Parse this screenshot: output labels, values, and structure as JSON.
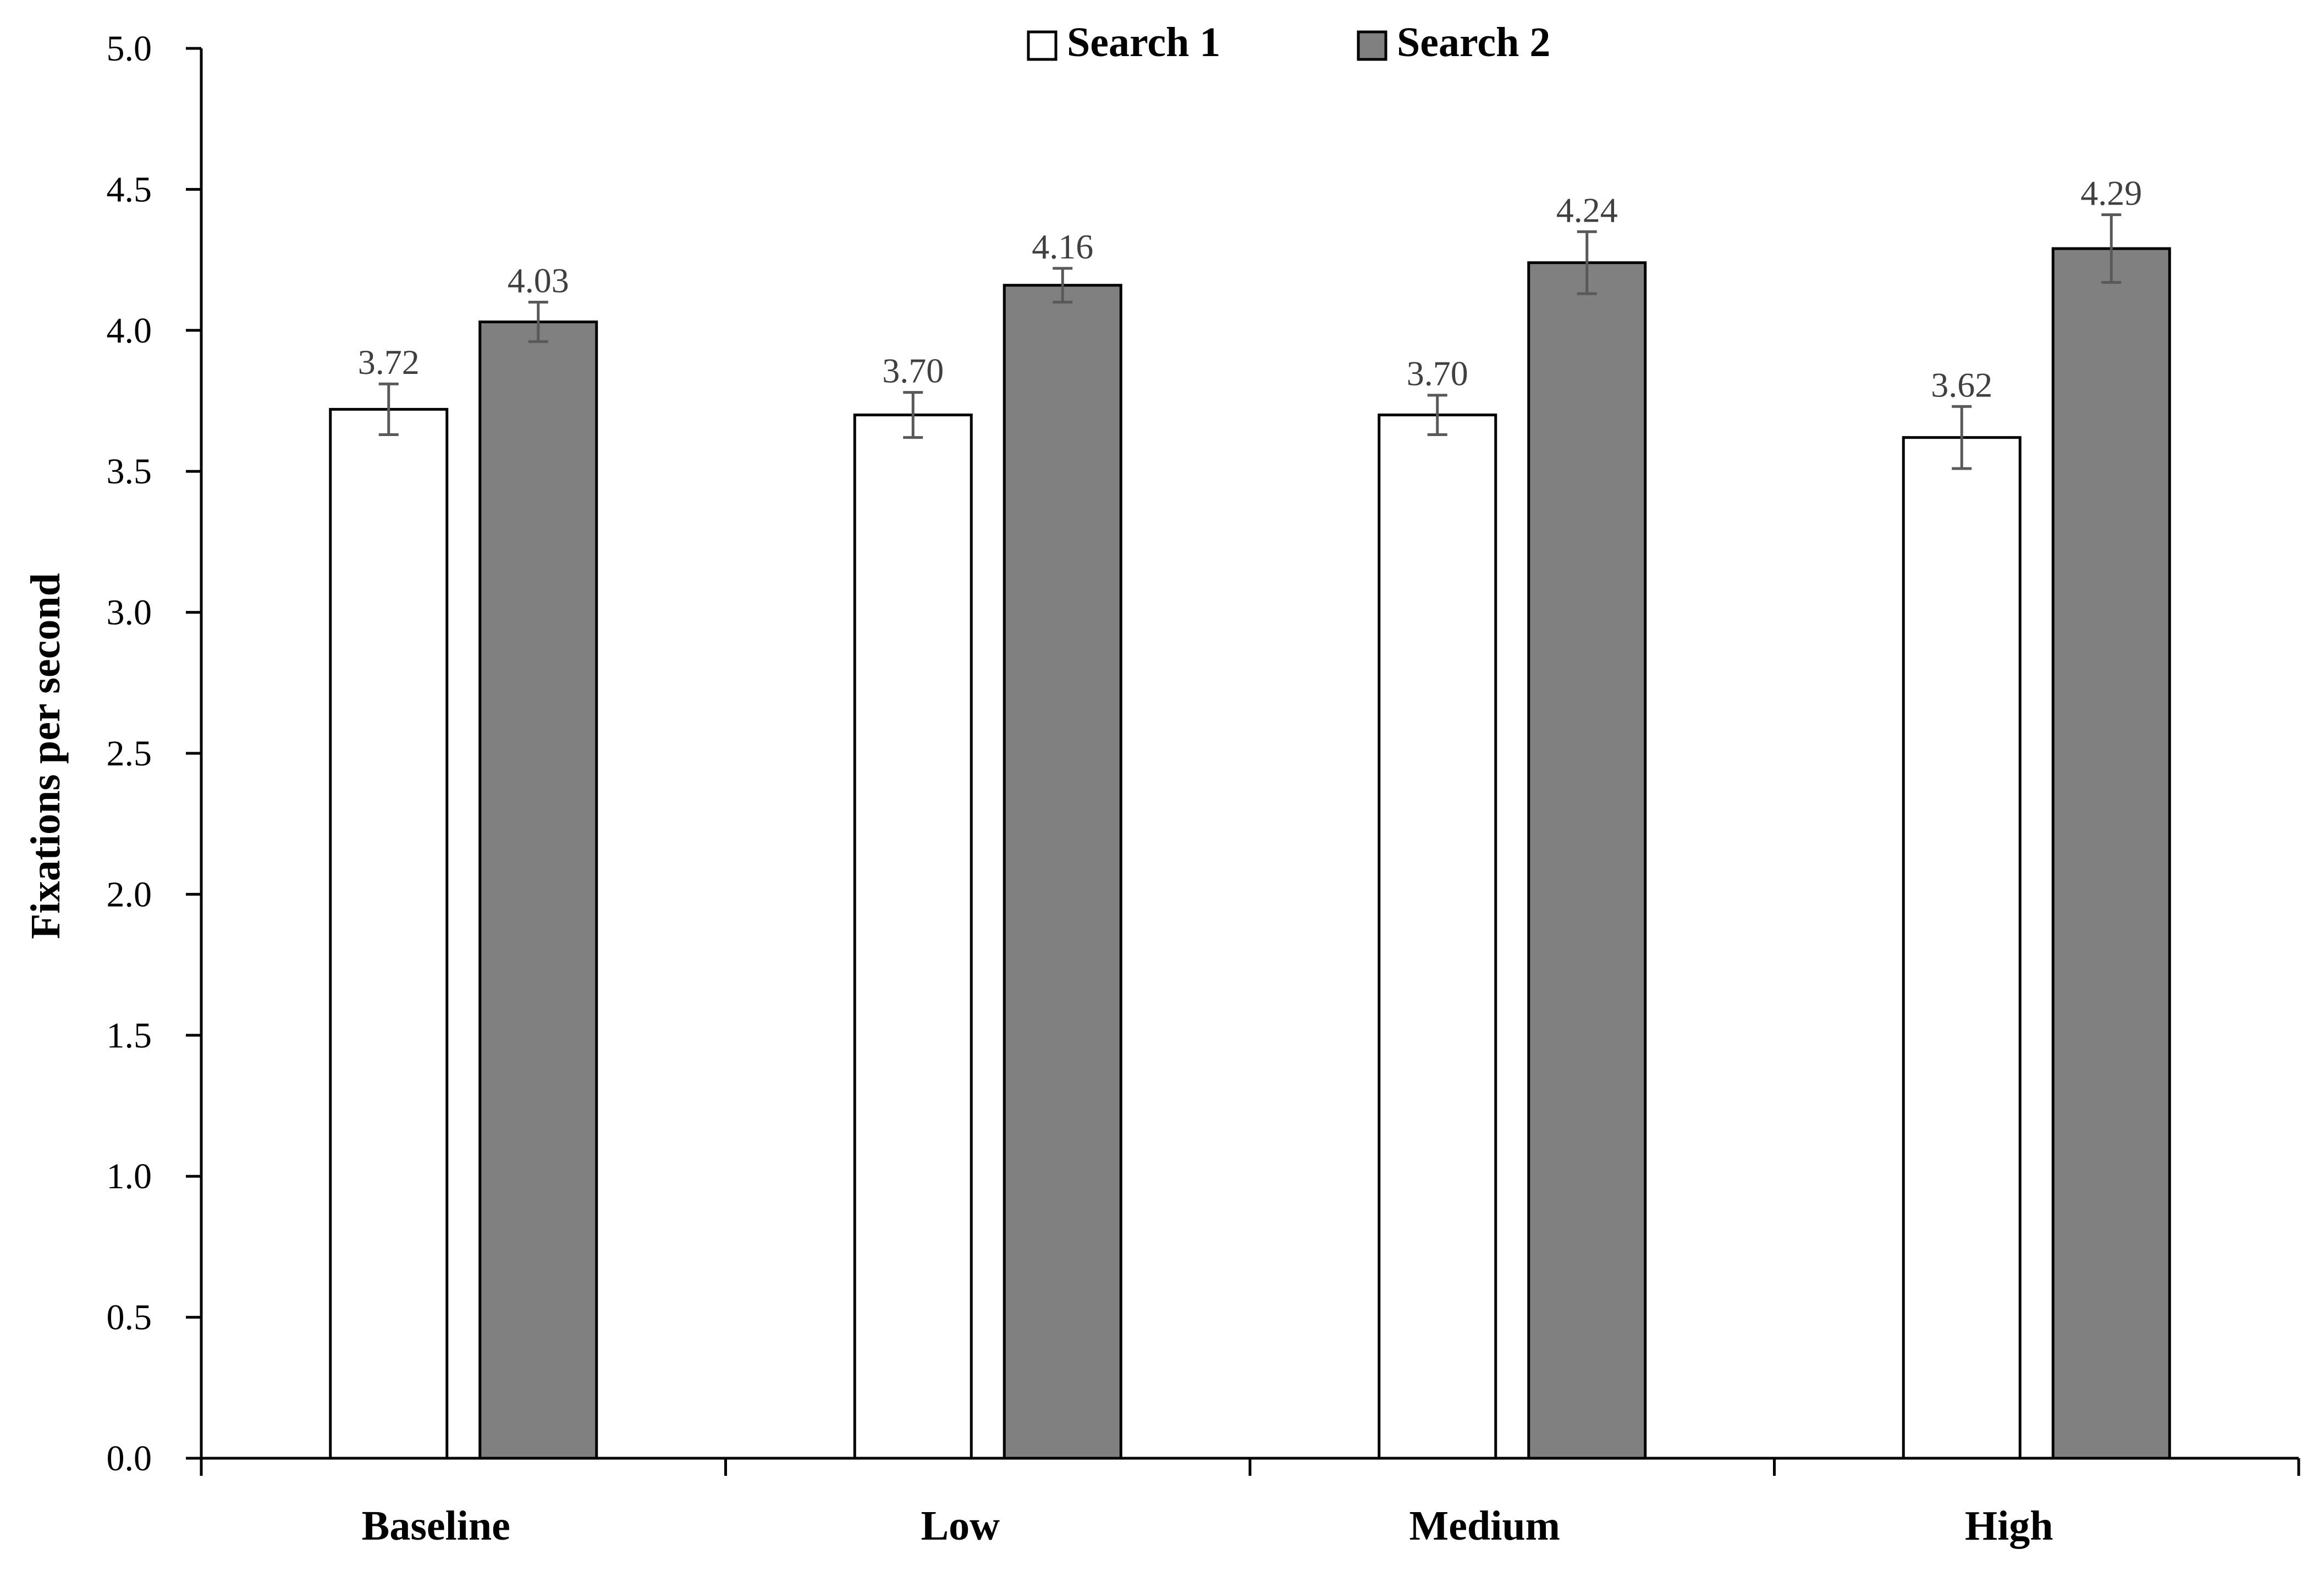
{
  "chart_data": {
    "type": "bar",
    "title": "",
    "xlabel": "",
    "ylabel": "Fixations per second",
    "ylim": [
      0,
      5
    ],
    "yticks": [
      "0.0",
      "0.5",
      "1.0",
      "1.5",
      "2.0",
      "2.5",
      "3.0",
      "3.5",
      "4.0",
      "4.5",
      "5.0"
    ],
    "categories": [
      "Baseline",
      "Low",
      "Medium",
      "High"
    ],
    "series": [
      {
        "name": "Search 1",
        "color": "#ffffff",
        "values": [
          3.72,
          3.7,
          3.7,
          3.62
        ],
        "labels": [
          "3.72",
          "3.70",
          "3.70",
          "3.62"
        ],
        "error": [
          0.09,
          0.08,
          0.07,
          0.11
        ]
      },
      {
        "name": "Search 2",
        "color": "#808080",
        "values": [
          4.03,
          4.16,
          4.24,
          4.29
        ],
        "labels": [
          "4.03",
          "4.16",
          "4.24",
          "4.29"
        ],
        "error": [
          0.07,
          0.06,
          0.11,
          0.12
        ]
      }
    ],
    "legend": "top-center",
    "grid": false,
    "error_bar_color": "#595959"
  }
}
